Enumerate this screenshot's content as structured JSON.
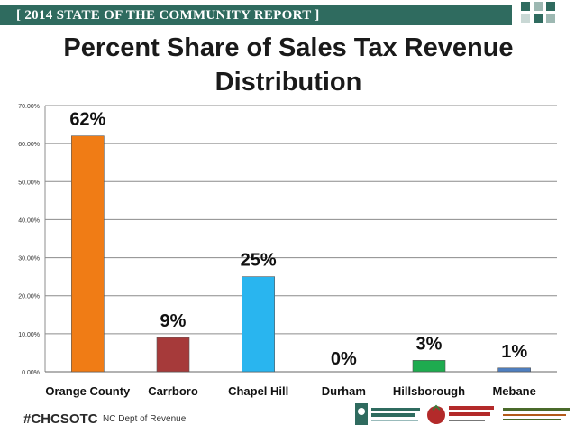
{
  "banner": {
    "text": "[ 2014 STATE OF THE COMMUNITY REPORT ]"
  },
  "colors": {
    "banner_bg": "#2f6b5f",
    "squares": [
      "#2f6b5f",
      "#9db8b2",
      "#2f6b5f",
      "#c9d8d5",
      "#2f6b5f",
      "#9db8b2"
    ]
  },
  "footer": {
    "hashtag": "#CHCSOTC",
    "source": "NC Dept of Revenue",
    "logos": [
      {
        "name": "triangle community FOUNDATION",
        "icon": "tcf-logo"
      },
      {
        "name": "CHAPEL HILL CARRBORO Chamber of Commerce",
        "icon": "chamber-logo"
      },
      {
        "name": "The Partnership for a Sustainable Community",
        "icon": "partnership-logo"
      }
    ]
  },
  "chart_data": {
    "type": "bar",
    "title": "Percent Share of Sales Tax Revenue Distribution",
    "categories": [
      "Orange County",
      "Carrboro",
      "Chapel Hill",
      "Durham",
      "Hillsborough",
      "Mebane"
    ],
    "values": [
      0.62,
      0.09,
      0.25,
      0.0,
      0.03,
      0.01
    ],
    "data_labels": [
      "62%",
      "9%",
      "25%",
      "0%",
      "3%",
      "1%"
    ],
    "bar_colors": [
      "#f07c15",
      "#a63a3a",
      "#29b5ef",
      "#7a9a3a",
      "#1eab4f",
      "#4f7fc0"
    ],
    "ylim": [
      0,
      0.7
    ],
    "yticks": [
      0,
      0.1,
      0.2,
      0.3,
      0.4,
      0.5,
      0.6,
      0.7
    ],
    "ytick_labels": [
      "0.00%",
      "10.00%",
      "20.00%",
      "30.00%",
      "40.00%",
      "50.00%",
      "60.00%",
      "70.00%"
    ],
    "grid": true,
    "legend": "none"
  }
}
